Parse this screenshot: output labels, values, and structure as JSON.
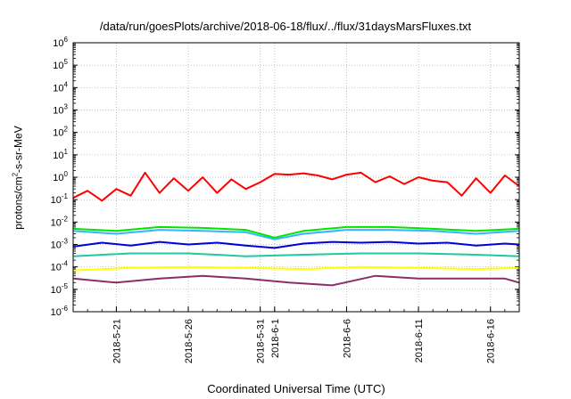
{
  "chart_data": {
    "type": "line",
    "title": "/data/run/goesPlots/archive/2018-06-18/flux/../flux/31daysMarsFluxes.txt",
    "xlabel": "Coordinated Universal Time (UTC)",
    "ylabel": "protons/cm2-s-sr-MeV",
    "ylabel_parts": {
      "pre": "protons/cm",
      "sup": "2",
      "post": "-s-sr-MeV"
    },
    "yscale": "log",
    "ylim_exp": [
      -6,
      6
    ],
    "ytick_labels": [
      "10-6",
      "10-5",
      "10-4",
      "10-3",
      "10-2",
      "10-1",
      "100",
      "101",
      "102",
      "103",
      "104",
      "105",
      "106"
    ],
    "x_start": "2018-05-18",
    "x_end": "2018-06-18",
    "xticks": [
      {
        "date": "2018-05-21",
        "label": "2018-5-21"
      },
      {
        "date": "2018-05-26",
        "label": "2018-5-26"
      },
      {
        "date": "2018-05-31",
        "label": "2018-5-31"
      },
      {
        "date": "2018-06-01",
        "label": "2018-6-1"
      },
      {
        "date": "2018-06-06",
        "label": "2018-6-6"
      },
      {
        "date": "2018-06-11",
        "label": "2018-6-11"
      },
      {
        "date": "2018-06-16",
        "label": "2018-6-16"
      }
    ],
    "grid": true,
    "series": [
      {
        "color": "#ff0000",
        "x": [
          "2018-05-18",
          "2018-05-19",
          "2018-05-20",
          "2018-05-21",
          "2018-05-22",
          "2018-05-23",
          "2018-05-24",
          "2018-05-25",
          "2018-05-26",
          "2018-05-27",
          "2018-05-28",
          "2018-05-29",
          "2018-05-30",
          "2018-05-31",
          "2018-06-01",
          "2018-06-02",
          "2018-06-03",
          "2018-06-04",
          "2018-06-05",
          "2018-06-06",
          "2018-06-07",
          "2018-06-08",
          "2018-06-09",
          "2018-06-10",
          "2018-06-11",
          "2018-06-12",
          "2018-06-13",
          "2018-06-14",
          "2018-06-15",
          "2018-06-16",
          "2018-06-17",
          "2018-06-18"
        ],
        "y": [
          0.12,
          0.25,
          0.09,
          0.3,
          0.15,
          1.6,
          0.2,
          0.9,
          0.25,
          1.0,
          0.2,
          0.8,
          0.3,
          0.6,
          1.4,
          1.3,
          1.5,
          1.2,
          0.8,
          1.3,
          1.6,
          0.6,
          1.1,
          0.5,
          1.0,
          0.7,
          0.6,
          0.15,
          0.9,
          0.2,
          1.2,
          0.4
        ]
      },
      {
        "color": "#00e600",
        "x": [
          "2018-05-18",
          "2018-05-21",
          "2018-05-24",
          "2018-05-27",
          "2018-05-30",
          "2018-06-01",
          "2018-06-03",
          "2018-06-06",
          "2018-06-09",
          "2018-06-12",
          "2018-06-15",
          "2018-06-18"
        ],
        "y": [
          0.005,
          0.004,
          0.006,
          0.0055,
          0.0045,
          0.002,
          0.004,
          0.006,
          0.006,
          0.005,
          0.004,
          0.005
        ]
      },
      {
        "color": "#33b5ff",
        "x": [
          "2018-05-18",
          "2018-05-21",
          "2018-05-24",
          "2018-05-27",
          "2018-05-30",
          "2018-06-01",
          "2018-06-03",
          "2018-06-06",
          "2018-06-09",
          "2018-06-12",
          "2018-06-15",
          "2018-06-18"
        ],
        "y": [
          0.004,
          0.003,
          0.0045,
          0.004,
          0.0035,
          0.0017,
          0.003,
          0.0045,
          0.0045,
          0.004,
          0.003,
          0.004
        ]
      },
      {
        "color": "#0000dd",
        "x": [
          "2018-05-18",
          "2018-05-20",
          "2018-05-22",
          "2018-05-24",
          "2018-05-26",
          "2018-05-28",
          "2018-05-30",
          "2018-06-01",
          "2018-06-03",
          "2018-06-05",
          "2018-06-07",
          "2018-06-09",
          "2018-06-11",
          "2018-06-13",
          "2018-06-15",
          "2018-06-17",
          "2018-06-18"
        ],
        "y": [
          0.0008,
          0.0012,
          0.0009,
          0.0013,
          0.001,
          0.0012,
          0.0009,
          0.0007,
          0.0011,
          0.0013,
          0.0012,
          0.0013,
          0.0011,
          0.0012,
          0.0009,
          0.0011,
          0.001
        ]
      },
      {
        "color": "#20c9a0",
        "x": [
          "2018-05-18",
          "2018-05-22",
          "2018-05-26",
          "2018-05-30",
          "2018-06-03",
          "2018-06-07",
          "2018-06-11",
          "2018-06-15",
          "2018-06-18"
        ],
        "y": [
          0.0003,
          0.0004,
          0.0004,
          0.0003,
          0.00035,
          0.0004,
          0.0004,
          0.00035,
          0.0003
        ]
      },
      {
        "color": "#ffff00",
        "x": [
          "2018-05-18",
          "2018-05-22",
          "2018-05-26",
          "2018-05-30",
          "2018-06-03",
          "2018-06-07",
          "2018-06-11",
          "2018-06-15",
          "2018-06-18"
        ],
        "y": [
          7e-05,
          9e-05,
          0.0001,
          9e-05,
          8e-05,
          0.0001,
          9e-05,
          8e-05,
          9e-05
        ]
      },
      {
        "color": "#8b2d6b",
        "x": [
          "2018-05-18",
          "2018-05-21",
          "2018-05-24",
          "2018-05-27",
          "2018-05-30",
          "2018-06-02",
          "2018-06-05",
          "2018-06-08",
          "2018-06-11",
          "2018-06-14",
          "2018-06-17",
          "2018-06-18"
        ],
        "y": [
          3e-05,
          2e-05,
          3e-05,
          4e-05,
          3e-05,
          2e-05,
          1.5e-05,
          4e-05,
          3e-05,
          3e-05,
          3e-05,
          2e-05
        ]
      }
    ]
  }
}
